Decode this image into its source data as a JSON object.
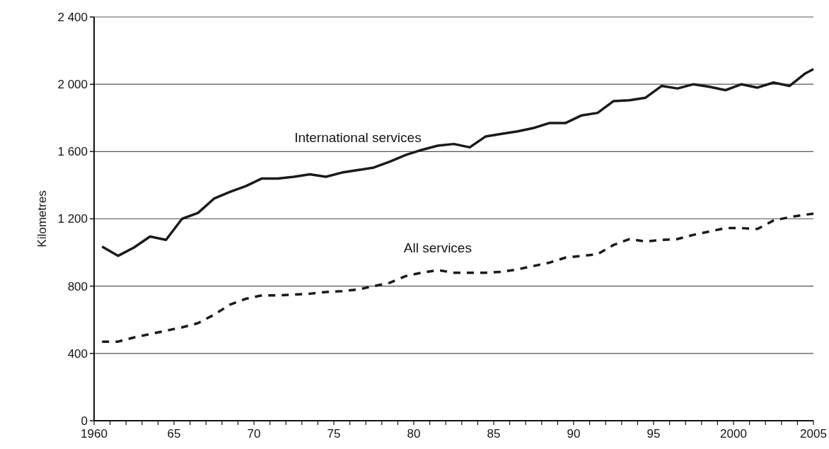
{
  "chart_data": {
    "type": "line",
    "ylabel": "Kilometres",
    "grid": "y",
    "xlim": [
      1960,
      2005
    ],
    "ylim": [
      0,
      2400
    ],
    "yticks": [
      {
        "value": 0,
        "label": "0"
      },
      {
        "value": 400,
        "label": "400"
      },
      {
        "value": 800,
        "label": "800"
      },
      {
        "value": 1200,
        "label": "1 200"
      },
      {
        "value": 1600,
        "label": "1 600"
      },
      {
        "value": 2000,
        "label": "2 000"
      },
      {
        "value": 2400,
        "label": "2 400"
      }
    ],
    "xticks": [
      {
        "value": 1960,
        "label": "1960"
      },
      {
        "value": 1961,
        "label": null
      },
      {
        "value": 1962,
        "label": null
      },
      {
        "value": 1963,
        "label": null
      },
      {
        "value": 1964,
        "label": null
      },
      {
        "value": 1965,
        "label": "65"
      },
      {
        "value": 1966,
        "label": null
      },
      {
        "value": 1967,
        "label": null
      },
      {
        "value": 1968,
        "label": null
      },
      {
        "value": 1969,
        "label": null
      },
      {
        "value": 1970,
        "label": "70"
      },
      {
        "value": 1971,
        "label": null
      },
      {
        "value": 1972,
        "label": null
      },
      {
        "value": 1973,
        "label": null
      },
      {
        "value": 1974,
        "label": null
      },
      {
        "value": 1975,
        "label": "75"
      },
      {
        "value": 1976,
        "label": null
      },
      {
        "value": 1977,
        "label": null
      },
      {
        "value": 1978,
        "label": null
      },
      {
        "value": 1979,
        "label": null
      },
      {
        "value": 1980,
        "label": "80"
      },
      {
        "value": 1981,
        "label": null
      },
      {
        "value": 1982,
        "label": null
      },
      {
        "value": 1983,
        "label": null
      },
      {
        "value": 1984,
        "label": null
      },
      {
        "value": 1985,
        "label": "85"
      },
      {
        "value": 1986,
        "label": null
      },
      {
        "value": 1987,
        "label": null
      },
      {
        "value": 1988,
        "label": null
      },
      {
        "value": 1989,
        "label": null
      },
      {
        "value": 1990,
        "label": "90"
      },
      {
        "value": 1991,
        "label": null
      },
      {
        "value": 1992,
        "label": null
      },
      {
        "value": 1993,
        "label": null
      },
      {
        "value": 1994,
        "label": null
      },
      {
        "value": 1995,
        "label": "95"
      },
      {
        "value": 1996,
        "label": null
      },
      {
        "value": 1997,
        "label": null
      },
      {
        "value": 1998,
        "label": null
      },
      {
        "value": 1999,
        "label": null
      },
      {
        "value": 2000,
        "label": "2000"
      },
      {
        "value": 2001,
        "label": null
      },
      {
        "value": 2002,
        "label": null
      },
      {
        "value": 2003,
        "label": null
      },
      {
        "value": 2004,
        "label": null
      },
      {
        "value": 2005,
        "label": "2005"
      }
    ],
    "x": [
      1960.5,
      1961.5,
      1962.5,
      1963.5,
      1964.5,
      1965.5,
      1966.5,
      1967.5,
      1968.5,
      1969.5,
      1970.5,
      1971.5,
      1972.5,
      1973.5,
      1974.5,
      1975.5,
      1976.5,
      1977.5,
      1978.5,
      1979.5,
      1980.5,
      1981.5,
      1982.5,
      1983.5,
      1984.5,
      1985.5,
      1986.5,
      1987.5,
      1988.5,
      1989.5,
      1990.5,
      1991.5,
      1992.5,
      1993.5,
      1994.5,
      1995.5,
      1996.5,
      1997.5,
      1998.5,
      1999.5,
      2000.5,
      2001.5,
      2002.5,
      2003.5,
      2004.5,
      2005
    ],
    "series": [
      {
        "name": "International services",
        "color": "#1a1a1a",
        "line_style": "solid",
        "values": [
          1035,
          980,
          1030,
          1095,
          1075,
          1200,
          1235,
          1320,
          1360,
          1395,
          1440,
          1440,
          1450,
          1465,
          1450,
          1475,
          1490,
          1505,
          1540,
          1580,
          1610,
          1635,
          1645,
          1625,
          1690,
          1705,
          1720,
          1740,
          1770,
          1770,
          1815,
          1830,
          1900,
          1905,
          1920,
          1990,
          1975,
          2000,
          1985,
          1965,
          2000,
          1980,
          2010,
          1990,
          2065,
          2090
        ]
      },
      {
        "name": "All services",
        "color": "#1a1a1a",
        "line_style": "dashed",
        "values": [
          470,
          470,
          495,
          515,
          535,
          555,
          580,
          630,
          690,
          725,
          745,
          745,
          750,
          755,
          765,
          770,
          780,
          800,
          820,
          860,
          880,
          895,
          880,
          880,
          880,
          885,
          900,
          920,
          940,
          970,
          980,
          990,
          1045,
          1080,
          1065,
          1075,
          1080,
          1105,
          1125,
          1145,
          1145,
          1140,
          1190,
          1210,
          1225,
          1230
        ]
      }
    ]
  }
}
